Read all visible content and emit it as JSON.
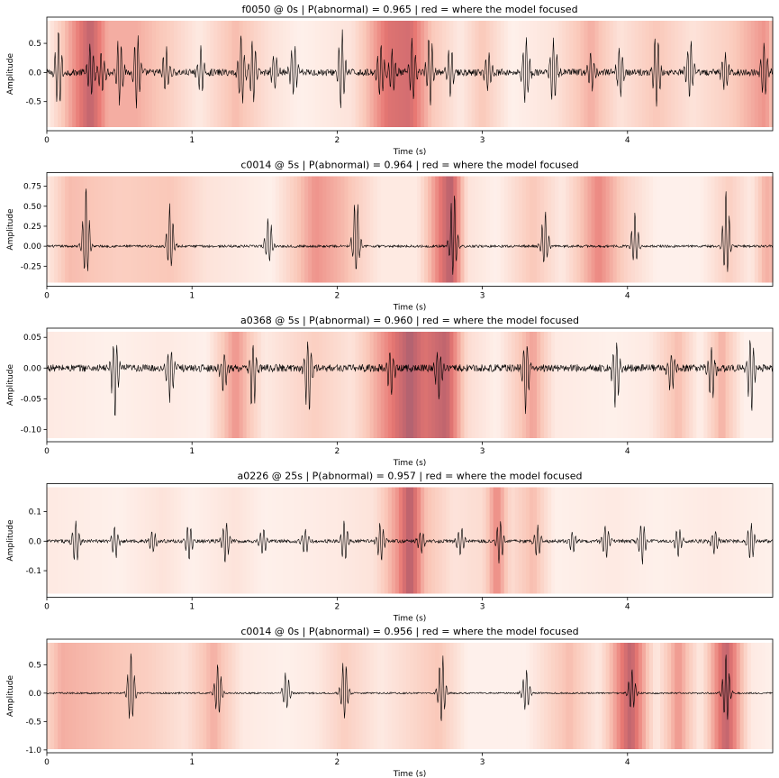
{
  "chart_data": [
    {
      "type": "line",
      "title": "f0050 @ 0s  |  P(abnormal) = 0.965  |  red = where the model focused",
      "xlabel": "Time (s)",
      "ylabel": "Amplitude",
      "xlim": [
        0,
        5
      ],
      "ylim": [
        -1.0,
        0.95
      ],
      "xticks": [
        "0",
        "1",
        "2",
        "3",
        "4"
      ],
      "yticks": [
        "-0.5",
        "0.0",
        "0.5"
      ],
      "ytick_values": [
        -0.5,
        0.0,
        0.5
      ],
      "signal": {
        "beat_times": [
          0.08,
          0.3,
          0.38,
          0.5,
          0.62,
          0.82,
          1.06,
          1.34,
          1.42,
          1.57,
          1.7,
          2.03,
          2.3,
          2.38,
          2.52,
          2.64,
          2.78,
          3.04,
          3.3,
          3.49,
          3.75,
          3.95,
          4.2,
          4.43,
          4.67,
          4.94
        ],
        "peak": 0.72,
        "trough": -0.62,
        "noise": 0.06
      },
      "attention": [
        {
          "t": 0.0,
          "v": 0.05
        },
        {
          "t": 0.3,
          "v": 0.85
        },
        {
          "t": 0.42,
          "v": 0.45
        },
        {
          "t": 0.62,
          "v": 0.45
        },
        {
          "t": 0.85,
          "v": 0.3
        },
        {
          "t": 1.05,
          "v": 0.1
        },
        {
          "t": 1.3,
          "v": 0.4
        },
        {
          "t": 1.55,
          "v": 0.15
        },
        {
          "t": 1.75,
          "v": 0.05
        },
        {
          "t": 2.1,
          "v": 0.15
        },
        {
          "t": 2.35,
          "v": 0.7
        },
        {
          "t": 2.5,
          "v": 0.75
        },
        {
          "t": 2.65,
          "v": 0.35
        },
        {
          "t": 2.85,
          "v": 0.1
        },
        {
          "t": 3.0,
          "v": 0.35
        },
        {
          "t": 3.2,
          "v": 0.05
        },
        {
          "t": 3.5,
          "v": 0.15
        },
        {
          "t": 3.75,
          "v": 0.45
        },
        {
          "t": 3.95,
          "v": 0.15
        },
        {
          "t": 4.2,
          "v": 0.35
        },
        {
          "t": 4.45,
          "v": 0.15
        },
        {
          "t": 4.7,
          "v": 0.3
        },
        {
          "t": 4.95,
          "v": 0.55
        },
        {
          "t": 5.0,
          "v": 0.35
        }
      ]
    },
    {
      "type": "line",
      "title": "c0014 @ 5s  |  P(abnormal) = 0.964  |  red = where the model focused",
      "xlabel": "Time (s)",
      "ylabel": "Amplitude",
      "xlim": [
        0,
        5
      ],
      "ylim": [
        -0.5,
        0.92
      ],
      "xticks": [
        "0",
        "1",
        "2",
        "3",
        "4"
      ],
      "yticks": [
        "-0.25",
        "0.00",
        "0.25",
        "0.50",
        "0.75"
      ],
      "ytick_values": [
        -0.25,
        0.0,
        0.25,
        0.5,
        0.75
      ],
      "signal": {
        "beat_times": [
          0.27,
          0.85,
          1.53,
          2.13,
          2.8,
          3.43,
          4.05,
          4.68
        ],
        "peak": 0.78,
        "trough": -0.38,
        "noise": 0.015
      },
      "attention": [
        {
          "t": 0.0,
          "v": 0.1
        },
        {
          "t": 0.15,
          "v": 0.4
        },
        {
          "t": 0.5,
          "v": 0.3
        },
        {
          "t": 0.85,
          "v": 0.35
        },
        {
          "t": 1.1,
          "v": 0.15
        },
        {
          "t": 1.35,
          "v": 0.1
        },
        {
          "t": 1.55,
          "v": 0.05
        },
        {
          "t": 1.85,
          "v": 0.55
        },
        {
          "t": 2.05,
          "v": 0.4
        },
        {
          "t": 2.3,
          "v": 0.1
        },
        {
          "t": 2.55,
          "v": 0.1
        },
        {
          "t": 2.78,
          "v": 0.9
        },
        {
          "t": 2.9,
          "v": 0.15
        },
        {
          "t": 3.1,
          "v": 0.05
        },
        {
          "t": 3.35,
          "v": 0.35
        },
        {
          "t": 3.55,
          "v": 0.1
        },
        {
          "t": 3.8,
          "v": 0.6
        },
        {
          "t": 4.0,
          "v": 0.25
        },
        {
          "t": 4.2,
          "v": 0.05
        },
        {
          "t": 4.5,
          "v": 0.05
        },
        {
          "t": 4.7,
          "v": 0.3
        },
        {
          "t": 4.85,
          "v": 0.1
        },
        {
          "t": 4.95,
          "v": 0.45
        },
        {
          "t": 5.0,
          "v": 0.4
        }
      ]
    },
    {
      "type": "line",
      "title": "a0368 @ 5s  |  P(abnormal) = 0.960  |  red = where the model focused",
      "xlabel": "Time (s)",
      "ylabel": "Amplitude",
      "xlim": [
        0,
        5
      ],
      "ylim": [
        -0.12,
        0.065
      ],
      "xticks": [
        "0",
        "1",
        "2",
        "3",
        "4"
      ],
      "yticks": [
        "-0.10",
        "-0.05",
        "0.00",
        "0.05"
      ],
      "ytick_values": [
        -0.1,
        -0.05,
        0.0,
        0.05
      ],
      "signal": {
        "beat_times": [
          0.47,
          0.85,
          1.22,
          1.42,
          1.8,
          2.37,
          2.7,
          3.3,
          3.92,
          4.3,
          4.58,
          4.85
        ],
        "peak": -0.085,
        "trough": 0.045,
        "noise": 0.006
      },
      "attention": [
        {
          "t": 0.0,
          "v": 0.1
        },
        {
          "t": 0.45,
          "v": 0.05
        },
        {
          "t": 0.8,
          "v": 0.1
        },
        {
          "t": 1.1,
          "v": 0.05
        },
        {
          "t": 1.3,
          "v": 0.55
        },
        {
          "t": 1.5,
          "v": 0.1
        },
        {
          "t": 1.85,
          "v": 0.3
        },
        {
          "t": 2.1,
          "v": 0.15
        },
        {
          "t": 2.35,
          "v": 0.6
        },
        {
          "t": 2.5,
          "v": 0.9
        },
        {
          "t": 2.6,
          "v": 0.7
        },
        {
          "t": 2.75,
          "v": 0.85
        },
        {
          "t": 2.9,
          "v": 0.2
        },
        {
          "t": 3.1,
          "v": 0.05
        },
        {
          "t": 3.35,
          "v": 0.5
        },
        {
          "t": 3.5,
          "v": 0.1
        },
        {
          "t": 3.9,
          "v": 0.05
        },
        {
          "t": 4.15,
          "v": 0.1
        },
        {
          "t": 4.35,
          "v": 0.4
        },
        {
          "t": 4.5,
          "v": 0.05
        },
        {
          "t": 4.65,
          "v": 0.45
        },
        {
          "t": 4.8,
          "v": 0.05
        },
        {
          "t": 5.0,
          "v": 0.05
        }
      ]
    },
    {
      "type": "line",
      "title": "a0226 @ 25s  |  P(abnormal) = 0.957  |  red = where the model focused",
      "xlabel": "Time (s)",
      "ylabel": "Amplitude",
      "xlim": [
        0,
        5
      ],
      "ylim": [
        -0.19,
        0.195
      ],
      "xticks": [
        "0",
        "1",
        "2",
        "3",
        "4"
      ],
      "yticks": [
        "-0.1",
        "0.0",
        "0.1"
      ],
      "ytick_values": [
        -0.1,
        0.0,
        0.1
      ],
      "signal": {
        "beat_times": [
          0.2,
          0.47,
          0.73,
          0.98,
          1.23,
          1.49,
          1.78,
          2.05,
          2.3,
          2.58,
          2.85,
          3.12,
          3.38,
          3.62,
          3.85,
          4.1,
          4.35,
          4.6,
          4.85
        ],
        "peak": 0.07,
        "trough": -0.08,
        "noise": 0.006
      },
      "attention": [
        {
          "t": 0.0,
          "v": 0.1
        },
        {
          "t": 0.5,
          "v": 0.05
        },
        {
          "t": 0.8,
          "v": 0.15
        },
        {
          "t": 1.0,
          "v": 0.05
        },
        {
          "t": 1.3,
          "v": 0.15
        },
        {
          "t": 1.5,
          "v": 0.05
        },
        {
          "t": 2.0,
          "v": 0.1
        },
        {
          "t": 2.25,
          "v": 0.15
        },
        {
          "t": 2.42,
          "v": 0.55
        },
        {
          "t": 2.5,
          "v": 0.9
        },
        {
          "t": 2.6,
          "v": 0.4
        },
        {
          "t": 2.8,
          "v": 0.15
        },
        {
          "t": 3.0,
          "v": 0.2
        },
        {
          "t": 3.1,
          "v": 0.6
        },
        {
          "t": 3.2,
          "v": 0.2
        },
        {
          "t": 3.35,
          "v": 0.4
        },
        {
          "t": 3.5,
          "v": 0.05
        },
        {
          "t": 3.9,
          "v": 0.1
        },
        {
          "t": 4.2,
          "v": 0.05
        },
        {
          "t": 4.6,
          "v": 0.1
        },
        {
          "t": 5.0,
          "v": 0.05
        }
      ]
    },
    {
      "type": "line",
      "title": "c0014 @ 0s  |  P(abnormal) = 0.956  |  red = where the model focused",
      "xlabel": "Time (s)",
      "ylabel": "Amplitude",
      "xlim": [
        0,
        5
      ],
      "ylim": [
        -1.05,
        0.95
      ],
      "xticks": [
        "0",
        "1",
        "2",
        "3",
        "4"
      ],
      "yticks": [
        "-1.0",
        "-0.5",
        "0.0",
        "0.5"
      ],
      "ytick_values": [
        -1.0,
        -0.5,
        0.0,
        0.5
      ],
      "signal": {
        "beat_times": [
          0.58,
          1.18,
          1.65,
          2.05,
          2.72,
          3.3,
          4.03,
          4.68
        ],
        "peak": 0.75,
        "trough": -0.55,
        "noise": 0.015
      },
      "attention": [
        {
          "t": 0.0,
          "v": 0.25
        },
        {
          "t": 0.1,
          "v": 0.45
        },
        {
          "t": 0.5,
          "v": 0.35
        },
        {
          "t": 0.7,
          "v": 0.3
        },
        {
          "t": 0.95,
          "v": 0.15
        },
        {
          "t": 1.15,
          "v": 0.45
        },
        {
          "t": 1.35,
          "v": 0.1
        },
        {
          "t": 1.65,
          "v": 0.05
        },
        {
          "t": 1.85,
          "v": 0.1
        },
        {
          "t": 2.05,
          "v": 0.3
        },
        {
          "t": 2.3,
          "v": 0.1
        },
        {
          "t": 2.7,
          "v": 0.35
        },
        {
          "t": 2.9,
          "v": 0.05
        },
        {
          "t": 3.3,
          "v": 0.05
        },
        {
          "t": 3.6,
          "v": 0.4
        },
        {
          "t": 3.8,
          "v": 0.1
        },
        {
          "t": 4.02,
          "v": 0.85
        },
        {
          "t": 4.2,
          "v": 0.1
        },
        {
          "t": 4.35,
          "v": 0.55
        },
        {
          "t": 4.5,
          "v": 0.1
        },
        {
          "t": 4.68,
          "v": 0.85
        },
        {
          "t": 4.85,
          "v": 0.1
        },
        {
          "t": 5.0,
          "v": 0.05
        }
      ]
    }
  ]
}
